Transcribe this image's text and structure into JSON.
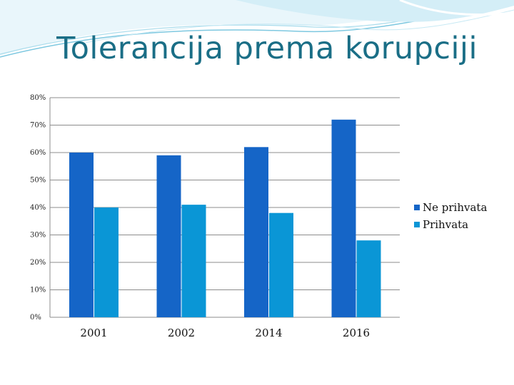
{
  "slide": {
    "title": "Tolerancija prema korupciji"
  },
  "colors": {
    "title": "#1a6e86",
    "series_1": "#1565c7",
    "series_2": "#0a96d6",
    "grid": "#8c8c8c"
  },
  "chart_data": {
    "type": "bar",
    "categories": [
      "2001",
      "2002",
      "2014",
      "2016"
    ],
    "series": [
      {
        "name": "Ne prihvata",
        "values": [
          60,
          59,
          62,
          72
        ],
        "color": "#1565c7"
      },
      {
        "name": "Prihvata",
        "values": [
          40,
          41,
          38,
          28
        ],
        "color": "#0a96d6"
      }
    ],
    "ylim": [
      0,
      80
    ],
    "yticks": [
      "0%",
      "10%",
      "20%",
      "30%",
      "40%",
      "50%",
      "60%",
      "70%",
      "80%"
    ],
    "grid": true,
    "legend_position": "right",
    "title": "",
    "xlabel": "",
    "ylabel": ""
  }
}
